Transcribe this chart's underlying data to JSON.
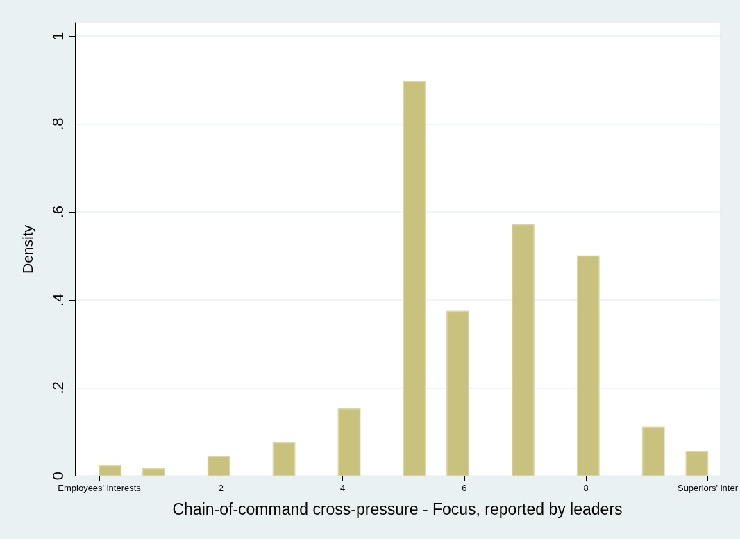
{
  "chart_data": {
    "type": "histogram",
    "xlabel": "Chain-of-command cross-pressure - Focus, reported by leaders",
    "ylabel": "Density",
    "bins": [
      0,
      0.357,
      0.714,
      1.071,
      1.429,
      1.786,
      2.143,
      2.5,
      2.857,
      3.214,
      3.571,
      3.929,
      4.286,
      4.643,
      5,
      5.357,
      5.714,
      6.071,
      6.429,
      6.786,
      7.143,
      7.5,
      7.857,
      8.214,
      8.571,
      8.929,
      9.286,
      9.643,
      10
    ],
    "values": [
      0.023,
      0,
      0.016,
      0,
      0,
      0.044,
      0,
      0,
      0.075,
      0,
      0,
      0.152,
      0,
      0,
      0.897,
      0,
      0.374,
      0,
      0,
      0.571,
      0,
      0,
      0.5,
      0,
      0,
      0.11,
      0,
      0.055
    ],
    "color": "#c9c27f",
    "xlim": [
      -0.4,
      10.2
    ],
    "ylim": [
      0,
      1.03
    ],
    "xticks": [
      {
        "value": 0,
        "label": "Employees' interests"
      },
      2,
      4,
      6,
      8,
      {
        "value": 10,
        "label": "Superiors' inter"
      }
    ],
    "yticks": [
      0,
      {
        "value": 0.2,
        "label": ".2"
      },
      {
        "value": 0.4,
        "label": ".4"
      },
      {
        "value": 0.6,
        "label": ".6"
      },
      {
        "value": 0.8,
        "label": ".8"
      },
      1
    ],
    "grid": "y"
  }
}
